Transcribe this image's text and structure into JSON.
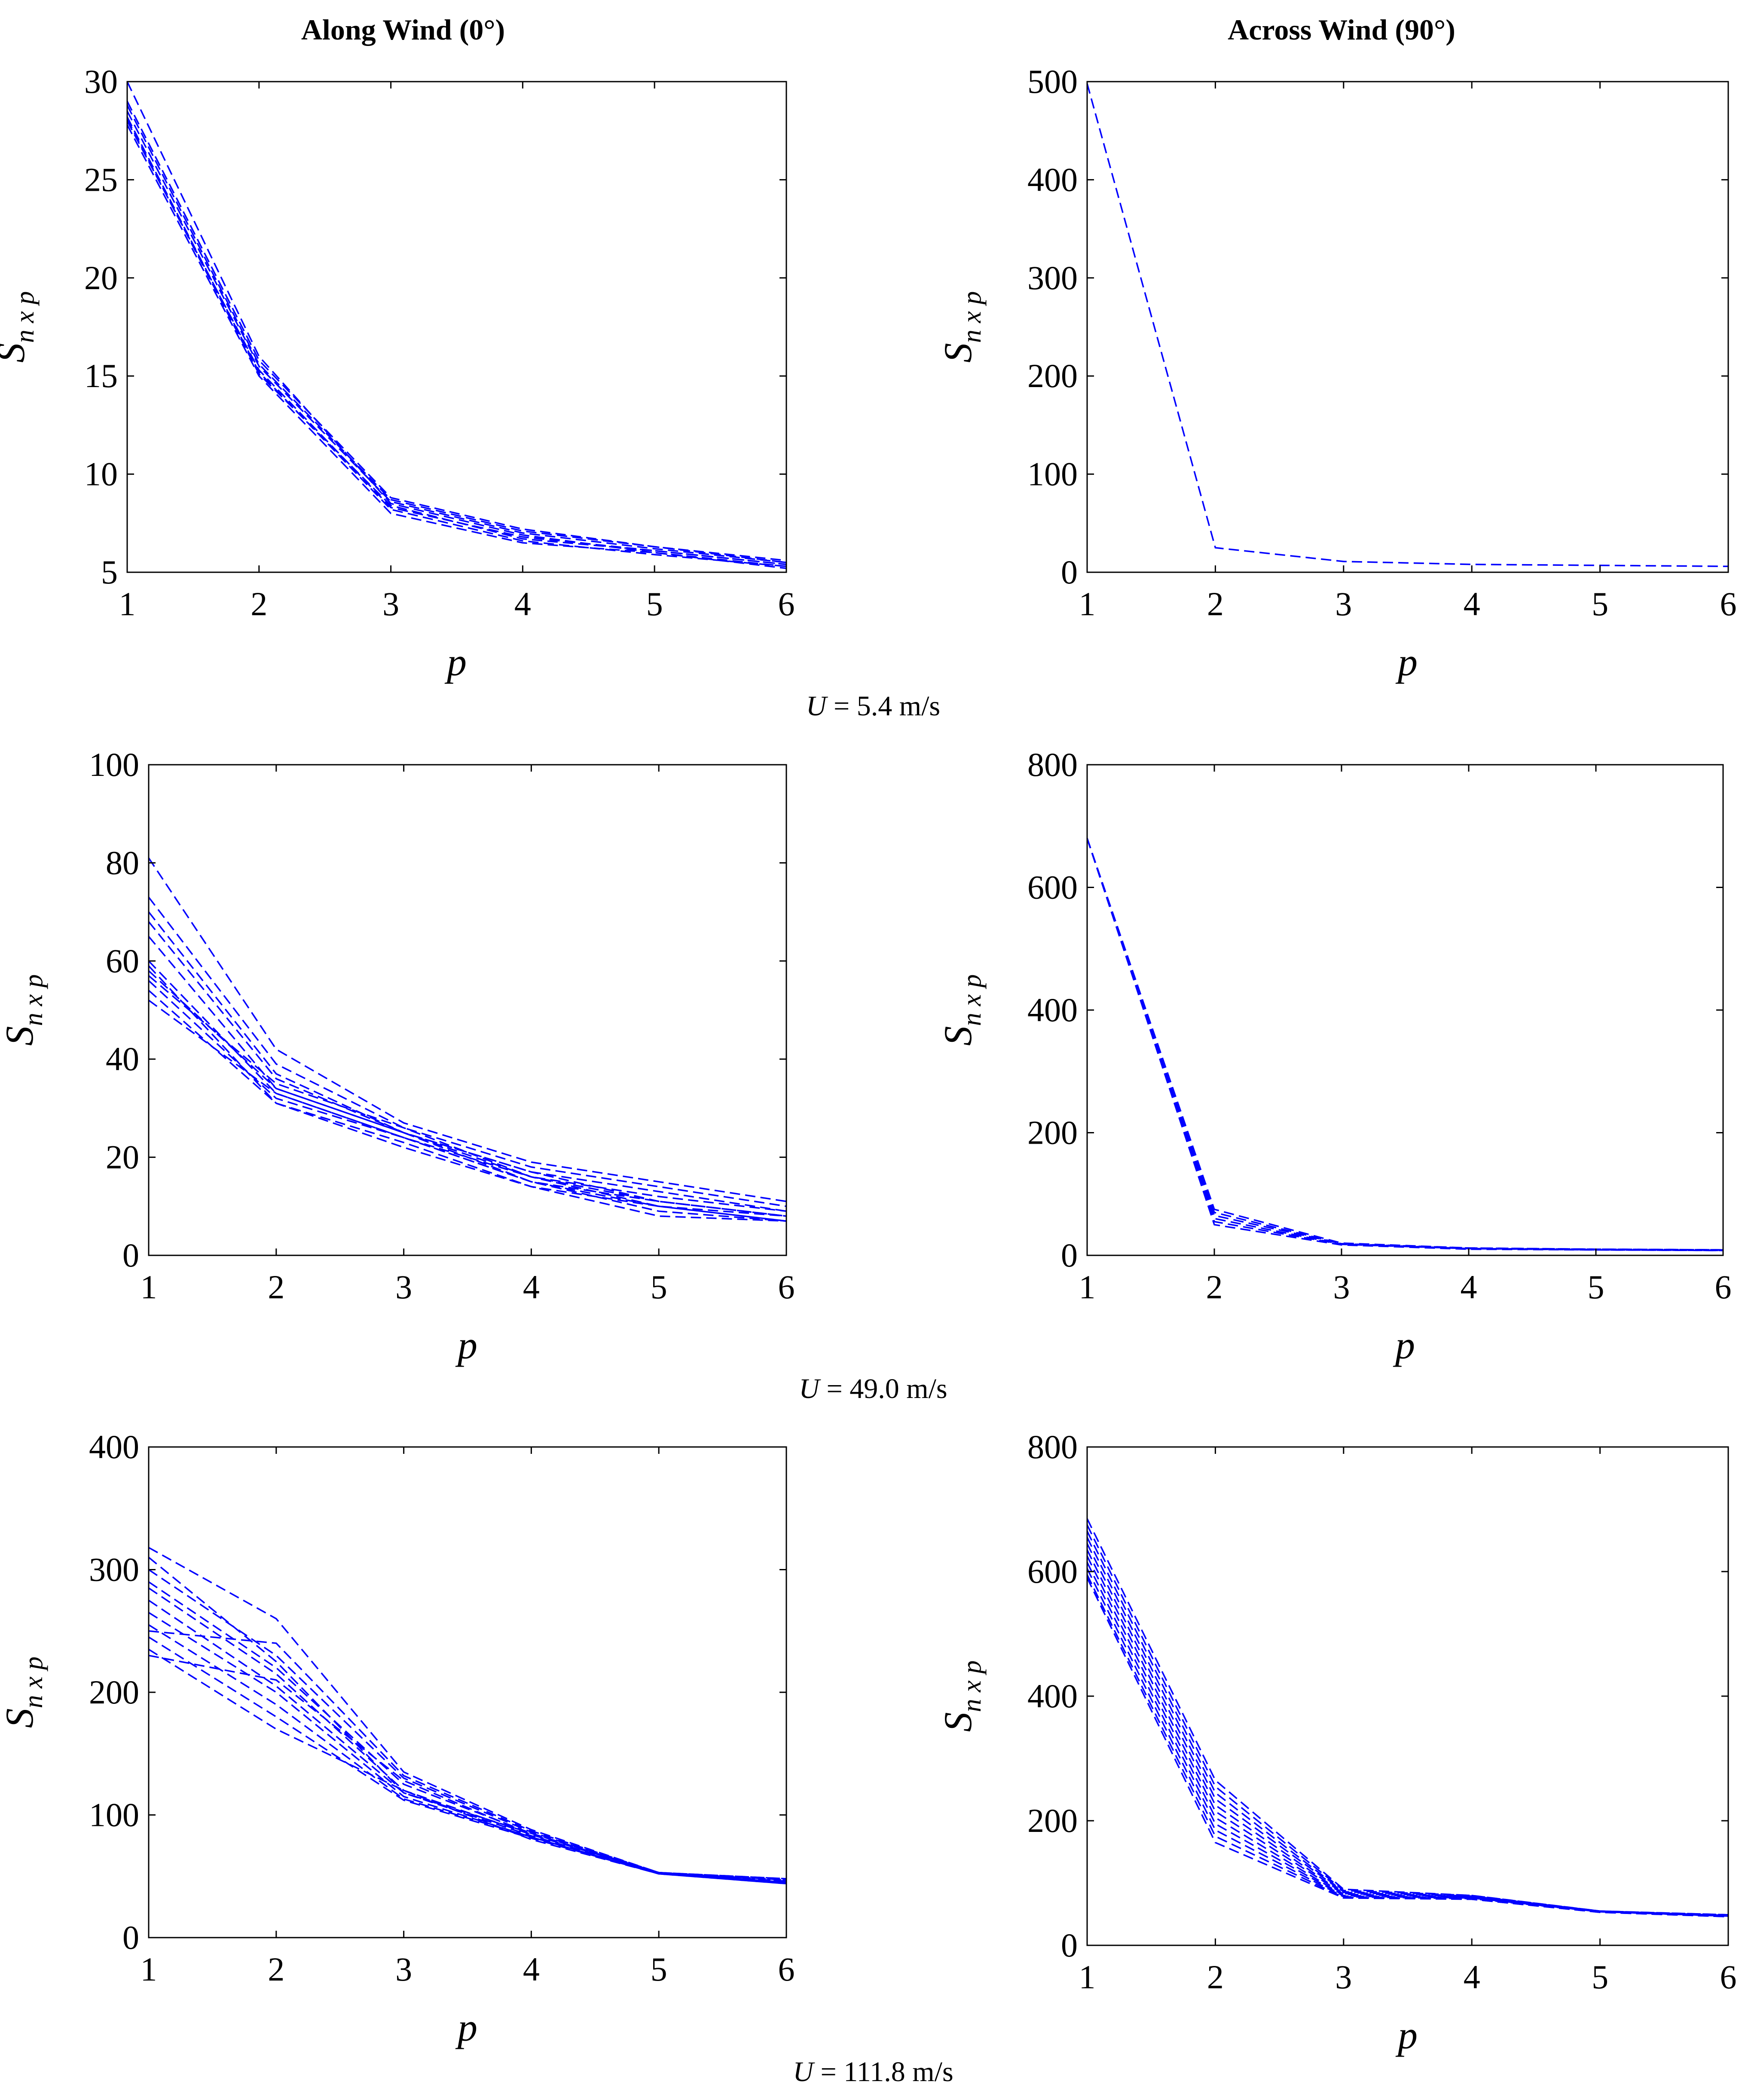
{
  "column_titles": [
    "Along Wind (0°)",
    "Across Wind (90°)"
  ],
  "row_labels": [
    {
      "var": "U",
      "rest": " = 5.4 m/s"
    },
    {
      "var": "U",
      "rest": " = 49.0 m/s"
    },
    {
      "var": "U",
      "rest": " = 111.8 m/s"
    }
  ],
  "colors": {
    "series": "#0000ff",
    "axis": "#000000",
    "background": "#ffffff"
  },
  "chart_data": [
    {
      "id": "along-5.4",
      "type": "line",
      "title": "Along Wind (0°)",
      "xlabel": "p",
      "ylabel_main": "S",
      "ylabel_sub": "n x p",
      "x": [
        1,
        2,
        3,
        4,
        5,
        6
      ],
      "xlim": [
        1,
        6
      ],
      "xticks": [
        1,
        2,
        3,
        4,
        5,
        6
      ],
      "ylim": [
        5,
        30
      ],
      "yticks": [
        5,
        10,
        15,
        20,
        25,
        30
      ],
      "line_style": "dashed",
      "series": [
        {
          "values": [
            28.0,
            15.3,
            8.3,
            6.8,
            6.1,
            5.4
          ]
        },
        {
          "values": [
            28.5,
            15.5,
            8.6,
            7.0,
            6.2,
            5.5
          ]
        },
        {
          "values": [
            29.0,
            15.8,
            8.8,
            7.2,
            6.3,
            5.6
          ]
        },
        {
          "values": [
            27.8,
            15.0,
            8.0,
            6.5,
            6.0,
            5.3
          ]
        },
        {
          "values": [
            30.0,
            16.0,
            8.5,
            6.9,
            6.0,
            5.2
          ]
        },
        {
          "values": [
            28.2,
            15.2,
            8.2,
            6.6,
            5.9,
            5.3
          ]
        },
        {
          "values": [
            28.8,
            15.6,
            8.7,
            7.1,
            6.3,
            5.5
          ]
        },
        {
          "values": [
            28.1,
            15.1,
            8.4,
            6.7,
            6.1,
            5.4
          ]
        }
      ]
    },
    {
      "id": "across-5.4",
      "type": "line",
      "title": "Across Wind (90°)",
      "xlabel": "p",
      "ylabel_main": "S",
      "ylabel_sub": "n x p",
      "x": [
        1,
        2,
        3,
        4,
        5,
        6
      ],
      "xlim": [
        1,
        6
      ],
      "xticks": [
        1,
        2,
        3,
        4,
        5,
        6
      ],
      "ylim": [
        0,
        500
      ],
      "yticks": [
        0,
        100,
        200,
        300,
        400,
        500
      ],
      "line_style": "dashed",
      "series": [
        {
          "values": [
            498,
            25,
            11,
            8,
            7,
            6
          ]
        }
      ]
    },
    {
      "id": "along-49.0",
      "type": "line",
      "title": "Along Wind (0°)",
      "xlabel": "p",
      "ylabel_main": "S",
      "ylabel_sub": "n x p",
      "x": [
        1,
        2,
        3,
        4,
        5,
        6
      ],
      "xlim": [
        1,
        6
      ],
      "xticks": [
        1,
        2,
        3,
        4,
        5,
        6
      ],
      "ylim": [
        0,
        100
      ],
      "yticks": [
        0,
        20,
        40,
        60,
        80,
        100
      ],
      "line_style": "dashed",
      "series": [
        {
          "values": [
            81,
            42,
            27,
            19,
            15,
            11
          ]
        },
        {
          "values": [
            73,
            39,
            26,
            18,
            14,
            10
          ]
        },
        {
          "values": [
            70,
            37,
            25,
            17,
            13,
            9
          ]
        },
        {
          "values": [
            68,
            36,
            25,
            16,
            12,
            9
          ]
        },
        {
          "values": [
            60,
            33,
            24,
            16,
            11,
            8
          ]
        },
        {
          "values": [
            58,
            34,
            25,
            15,
            10,
            7
          ]
        },
        {
          "values": [
            56,
            32,
            24,
            15,
            11,
            8
          ]
        },
        {
          "values": [
            54,
            31,
            23,
            14,
            10,
            7
          ]
        },
        {
          "values": [
            52,
            33,
            24,
            15,
            9,
            7
          ]
        },
        {
          "values": [
            57,
            35,
            26,
            16,
            10,
            8
          ]
        },
        {
          "values": [
            59,
            31,
            22,
            14,
            8,
            7
          ]
        },
        {
          "values": [
            65,
            34,
            25,
            17,
            11,
            8
          ]
        }
      ]
    },
    {
      "id": "across-49.0",
      "type": "line",
      "title": "Across Wind (90°)",
      "xlabel": "p",
      "ylabel_main": "S",
      "ylabel_sub": "n x p",
      "x": [
        1,
        2,
        3,
        4,
        5,
        6
      ],
      "xlim": [
        1,
        6
      ],
      "xticks": [
        1,
        2,
        3,
        4,
        5,
        6
      ],
      "ylim": [
        0,
        800
      ],
      "yticks": [
        0,
        200,
        400,
        600,
        800
      ],
      "line_style": "dashed",
      "series": [
        {
          "values": [
            680,
            75,
            20,
            12,
            10,
            9
          ]
        },
        {
          "values": [
            680,
            70,
            19,
            12,
            10,
            9
          ]
        },
        {
          "values": [
            680,
            65,
            19,
            11,
            10,
            9
          ]
        },
        {
          "values": [
            680,
            60,
            18,
            11,
            9,
            8
          ]
        },
        {
          "values": [
            680,
            55,
            18,
            11,
            9,
            8
          ]
        },
        {
          "values": [
            680,
            50,
            17,
            10,
            9,
            8
          ]
        }
      ]
    },
    {
      "id": "along-111.8",
      "type": "line",
      "title": "Along Wind (0°)",
      "xlabel": "p",
      "ylabel_main": "S",
      "ylabel_sub": "n x p",
      "x": [
        1,
        2,
        3,
        4,
        5,
        6
      ],
      "xlim": [
        1,
        6
      ],
      "xticks": [
        1,
        2,
        3,
        4,
        5,
        6
      ],
      "ylim": [
        0,
        400
      ],
      "yticks": [
        0,
        100,
        200,
        300,
        400
      ],
      "line_style": "dashed",
      "series": [
        {
          "values": [
            318,
            260,
            135,
            88,
            53,
            48
          ]
        },
        {
          "values": [
            300,
            230,
            130,
            86,
            53,
            47
          ]
        },
        {
          "values": [
            290,
            220,
            125,
            85,
            53,
            46
          ]
        },
        {
          "values": [
            285,
            215,
            120,
            84,
            53,
            46
          ]
        },
        {
          "values": [
            275,
            205,
            118,
            83,
            53,
            45
          ]
        },
        {
          "values": [
            265,
            200,
            115,
            82,
            52,
            45
          ]
        },
        {
          "values": [
            255,
            190,
            113,
            82,
            52,
            45
          ]
        },
        {
          "values": [
            245,
            180,
            112,
            81,
            52,
            44
          ]
        },
        {
          "values": [
            235,
            170,
            120,
            80,
            52,
            44
          ]
        },
        {
          "values": [
            230,
            210,
            128,
            84,
            53,
            46
          ]
        },
        {
          "values": [
            310,
            225,
            118,
            85,
            53,
            47
          ]
        },
        {
          "values": [
            250,
            240,
            132,
            87,
            53,
            48
          ]
        }
      ]
    },
    {
      "id": "across-111.8",
      "type": "line",
      "title": "Across Wind (90°)",
      "xlabel": "p",
      "ylabel_main": "S",
      "ylabel_sub": "n x p",
      "x": [
        1,
        2,
        3,
        4,
        5,
        6
      ],
      "xlim": [
        1,
        6
      ],
      "xticks": [
        1,
        2,
        3,
        4,
        5,
        6
      ],
      "ylim": [
        0,
        800
      ],
      "yticks": [
        0,
        200,
        400,
        600,
        800
      ],
      "line_style": "dashed",
      "series": [
        {
          "values": [
            685,
            265,
            90,
            80,
            55,
            49
          ]
        },
        {
          "values": [
            675,
            255,
            88,
            80,
            55,
            49
          ]
        },
        {
          "values": [
            665,
            245,
            86,
            79,
            55,
            48
          ]
        },
        {
          "values": [
            655,
            235,
            85,
            78,
            55,
            48
          ]
        },
        {
          "values": [
            645,
            225,
            83,
            78,
            54,
            48
          ]
        },
        {
          "values": [
            635,
            215,
            82,
            77,
            54,
            47
          ]
        },
        {
          "values": [
            625,
            205,
            80,
            76,
            54,
            47
          ]
        },
        {
          "values": [
            615,
            195,
            79,
            76,
            54,
            47
          ]
        },
        {
          "values": [
            605,
            185,
            78,
            75,
            54,
            47
          ]
        },
        {
          "values": [
            595,
            175,
            77,
            74,
            53,
            46
          ]
        },
        {
          "values": [
            590,
            165,
            76,
            74,
            53,
            46
          ]
        }
      ]
    }
  ]
}
